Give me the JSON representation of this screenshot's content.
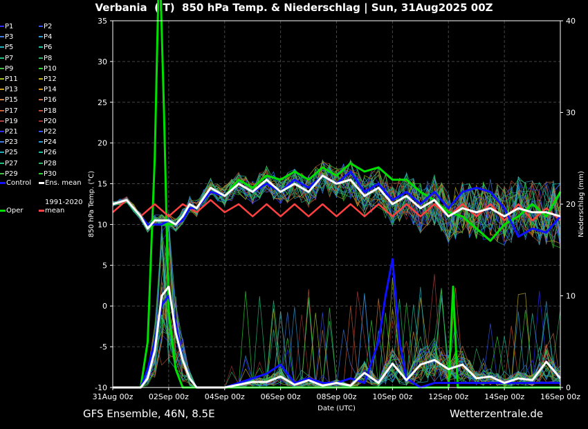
{
  "title": "Verbania  (IT)  850 hPa Temp. & Niederschlag | Sun, 31Aug2025 00Z",
  "footer": {
    "left": "GFS Ensemble, 46N, 8.5E",
    "right": "Wetterzentrale.de"
  },
  "legend": {
    "members": [
      {
        "label": "P1",
        "color": "#2a2aff"
      },
      {
        "label": "P2",
        "color": "#3355ee"
      },
      {
        "label": "P3",
        "color": "#3a7be0"
      },
      {
        "label": "P4",
        "color": "#2f9ad0"
      },
      {
        "label": "P5",
        "color": "#20b0c0"
      },
      {
        "label": "P6",
        "color": "#20c0a0"
      },
      {
        "label": "P7",
        "color": "#20c080"
      },
      {
        "label": "P8",
        "color": "#30b060"
      },
      {
        "label": "P9",
        "color": "#40c040"
      },
      {
        "label": "P10",
        "color": "#30d030"
      },
      {
        "label": "P11",
        "color": "#a0c020"
      },
      {
        "label": "P12",
        "color": "#c0b020"
      },
      {
        "label": "P13",
        "color": "#d0a020"
      },
      {
        "label": "P14",
        "color": "#d09020"
      },
      {
        "label": "P15",
        "color": "#d08040"
      },
      {
        "label": "P16",
        "color": "#c07040"
      },
      {
        "label": "P17",
        "color": "#d06030"
      },
      {
        "label": "P18",
        "color": "#c05030"
      },
      {
        "label": "P19",
        "color": "#b04040"
      },
      {
        "label": "P20",
        "color": "#a03030"
      },
      {
        "label": "P21",
        "color": "#2a2aff"
      },
      {
        "label": "P22",
        "color": "#3355ee"
      },
      {
        "label": "P23",
        "color": "#3a7be0"
      },
      {
        "label": "P24",
        "color": "#2f9ad0"
      },
      {
        "label": "P25",
        "color": "#20b0c0"
      },
      {
        "label": "P26",
        "color": "#20c0a0"
      },
      {
        "label": "P27",
        "color": "#20c080"
      },
      {
        "label": "P28",
        "color": "#30b060"
      },
      {
        "label": "P29",
        "color": "#40c040"
      },
      {
        "label": "P30",
        "color": "#30d030"
      }
    ],
    "control": {
      "label": "Control",
      "color": "#1010ff"
    },
    "ens_mean": {
      "label": "Ens. mean",
      "color": "#ffffff"
    },
    "clim_mean": {
      "label": "1991-2020 mean",
      "color": "#ff4040"
    },
    "oper": {
      "label": "Oper",
      "color": "#00e000"
    }
  },
  "chart_data": {
    "type": "line",
    "xlabel": "Date (UTC)",
    "ylabel": "850 hPa Temp. (°C)",
    "y2label": "Niederschlag (mm)",
    "ylim": [
      -10,
      35
    ],
    "y2lim": [
      0,
      40
    ],
    "yticks": [
      -10,
      -5,
      0,
      5,
      10,
      15,
      20,
      25,
      30,
      35
    ],
    "y2ticks": [
      0,
      10,
      20,
      30,
      40
    ],
    "x_labels": [
      "31Aug 00z",
      "02Sep 00z",
      "04Sep 00z",
      "06Sep 00z",
      "08Sep 00z",
      "10Sep 00z",
      "12Sep 00z",
      "14Sep 00z",
      "16Sep 00z"
    ],
    "x_hours": [
      0,
      48,
      96,
      144,
      192,
      240,
      288,
      336,
      384
    ],
    "grid": true,
    "series": [
      {
        "name": "Ens. mean",
        "color": "#ffffff",
        "axis": "temp",
        "x": [
          0,
          12,
          24,
          30,
          36,
          42,
          48,
          54,
          60,
          66,
          72,
          84,
          96,
          108,
          120,
          132,
          144,
          156,
          168,
          180,
          192,
          204,
          216,
          228,
          240,
          252,
          264,
          276,
          288,
          300,
          312,
          324,
          336,
          348,
          360,
          372,
          384
        ],
        "values": [
          12.5,
          13,
          11,
          9.5,
          10.5,
          10.5,
          10.5,
          10,
          11,
          12.5,
          12,
          14.5,
          13.5,
          15,
          14,
          15.5,
          14,
          15,
          14,
          16,
          15,
          15.5,
          13.5,
          14.5,
          12.5,
          13.5,
          12,
          13,
          11,
          12,
          11.5,
          12,
          11,
          12,
          11.5,
          11.5,
          11
        ]
      },
      {
        "name": "Control",
        "color": "#1010ff",
        "axis": "temp",
        "x": [
          0,
          12,
          24,
          30,
          36,
          42,
          48,
          54,
          60,
          66,
          72,
          84,
          96,
          108,
          120,
          132,
          144,
          156,
          168,
          180,
          192,
          204,
          216,
          228,
          240,
          252,
          264,
          276,
          288,
          300,
          312,
          324,
          336,
          348,
          360,
          372,
          384
        ],
        "values": [
          12.5,
          13,
          11,
          10,
          10,
          10,
          10.5,
          10,
          10.5,
          12,
          12,
          14,
          13.5,
          15,
          14,
          15,
          14,
          15.5,
          14.5,
          16,
          15,
          16.5,
          14,
          15,
          13,
          14,
          12.5,
          14,
          12,
          14,
          14.5,
          14,
          12,
          8.5,
          9.5,
          9,
          11
        ]
      },
      {
        "name": "Oper",
        "color": "#00e000",
        "axis": "temp",
        "x": [
          0,
          12,
          24,
          30,
          36,
          42,
          48,
          54,
          60,
          66,
          72,
          84,
          96,
          108,
          120,
          132,
          144,
          156,
          168,
          180,
          192,
          204,
          216,
          228,
          240,
          252,
          264,
          276,
          288,
          300,
          312,
          324,
          336,
          348,
          360,
          372,
          384
        ],
        "values": [
          12.5,
          13,
          11,
          10,
          10,
          10,
          10,
          10,
          11,
          12.5,
          12,
          14.5,
          13.5,
          15.5,
          14.5,
          16,
          15.5,
          16.5,
          15.5,
          17,
          16,
          17.5,
          16.5,
          17,
          15.5,
          15.5,
          14,
          13,
          11.5,
          11,
          9.5,
          8,
          10,
          11,
          12.5,
          11,
          14
        ]
      },
      {
        "name": "1991-2020 mean",
        "color": "#ff4040",
        "axis": "temp",
        "x": [
          0,
          12,
          24,
          36,
          48,
          60,
          72,
          84,
          96,
          108,
          120,
          132,
          144,
          156,
          168,
          180,
          192,
          204,
          216,
          228,
          240,
          252,
          264,
          276,
          288,
          300,
          312,
          324,
          336,
          348,
          360,
          372,
          384
        ],
        "values": [
          11.5,
          13,
          11,
          12.5,
          11,
          12.5,
          11.5,
          13,
          11.5,
          12.5,
          11,
          12.5,
          11,
          12.5,
          11,
          12.5,
          11,
          12.5,
          11,
          12.5,
          11,
          12.5,
          11,
          12.5,
          11,
          12.5,
          11,
          12.5,
          10.5,
          12.5,
          10.5,
          12,
          10.5
        ]
      },
      {
        "name": "Ens. mean precip",
        "color": "#ffffff",
        "axis": "precip",
        "x": [
          0,
          24,
          30,
          36,
          42,
          48,
          54,
          60,
          66,
          72,
          96,
          108,
          120,
          132,
          144,
          156,
          168,
          180,
          192,
          204,
          216,
          228,
          240,
          252,
          264,
          276,
          288,
          300,
          312,
          324,
          336,
          348,
          360,
          372,
          384
        ],
        "values": [
          0,
          0,
          1,
          4,
          10,
          11,
          6,
          3,
          1,
          0,
          0,
          0.3,
          0.6,
          0.6,
          1.2,
          0.3,
          0.8,
          0.2,
          0.5,
          0.2,
          1.6,
          0.5,
          2.6,
          0.8,
          2.5,
          3,
          2,
          2.5,
          1,
          1.2,
          0.5,
          1,
          0.8,
          2.8,
          1
        ]
      },
      {
        "name": "Control precip",
        "color": "#1010ff",
        "axis": "precip",
        "x": [
          0,
          24,
          30,
          36,
          42,
          48,
          54,
          60,
          66,
          72,
          96,
          108,
          120,
          132,
          144,
          156,
          168,
          180,
          192,
          204,
          216,
          228,
          234,
          240,
          246,
          252,
          264,
          276,
          288,
          300,
          312,
          324,
          336,
          348,
          360,
          372,
          384
        ],
        "values": [
          0,
          0,
          2,
          5,
          9,
          10,
          7,
          3,
          1,
          0,
          0,
          0.5,
          1,
          1.5,
          2.5,
          0.5,
          1,
          0.5,
          0.5,
          1,
          0.5,
          5,
          10,
          14,
          5,
          1,
          0,
          0.5,
          0.5,
          0.5,
          0.5,
          0.5,
          0.5,
          0.5,
          0.5,
          0.5,
          0.5
        ]
      },
      {
        "name": "Oper precip",
        "color": "#00e000",
        "axis": "precip",
        "x": [
          0,
          24,
          30,
          36,
          40,
          44,
          48,
          54,
          60,
          66,
          72,
          96,
          288,
          292,
          296,
          300,
          384
        ],
        "values": [
          0,
          0,
          5,
          25,
          48,
          30,
          8,
          2,
          0,
          0,
          0,
          0,
          0,
          11,
          0,
          0,
          0
        ]
      }
    ]
  }
}
